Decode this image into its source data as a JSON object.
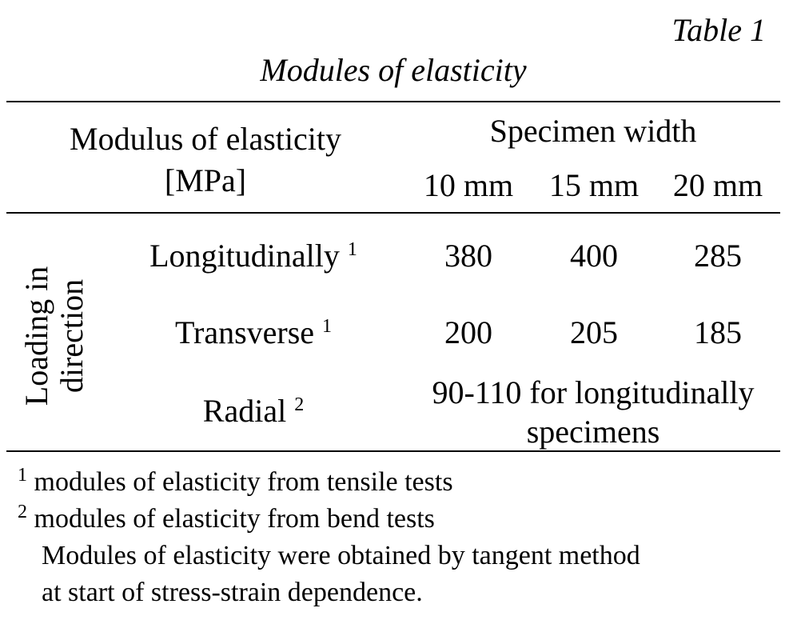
{
  "table_number": "Table 1",
  "caption": "Modules of elasticity",
  "header": {
    "row_header_line1": "Modulus of elasticity",
    "row_header_line2": "[MPa]",
    "group_label": "Specimen width",
    "columns": [
      "10 mm",
      "15 mm",
      "20 mm"
    ]
  },
  "side_label": {
    "line1": "Loading in",
    "line2": "direction"
  },
  "rows": [
    {
      "label": "Longitudinally",
      "note": "1",
      "values": [
        "380",
        "400",
        "285"
      ]
    },
    {
      "label": "Transverse",
      "note": "1",
      "values": [
        "200",
        "205",
        "185"
      ]
    },
    {
      "label": "Radial",
      "note": "2",
      "merged_line1": "90-110 for longitudinally",
      "merged_line2": "specimens"
    }
  ],
  "footnotes": [
    {
      "mark": "1",
      "text": "modules of elasticity from tensile tests"
    },
    {
      "mark": "2",
      "text": "modules of elasticity from bend tests"
    }
  ],
  "remark_line1": "Modules of elasticity were obtained by tangent method",
  "remark_line2": "at start of stress-strain dependence."
}
